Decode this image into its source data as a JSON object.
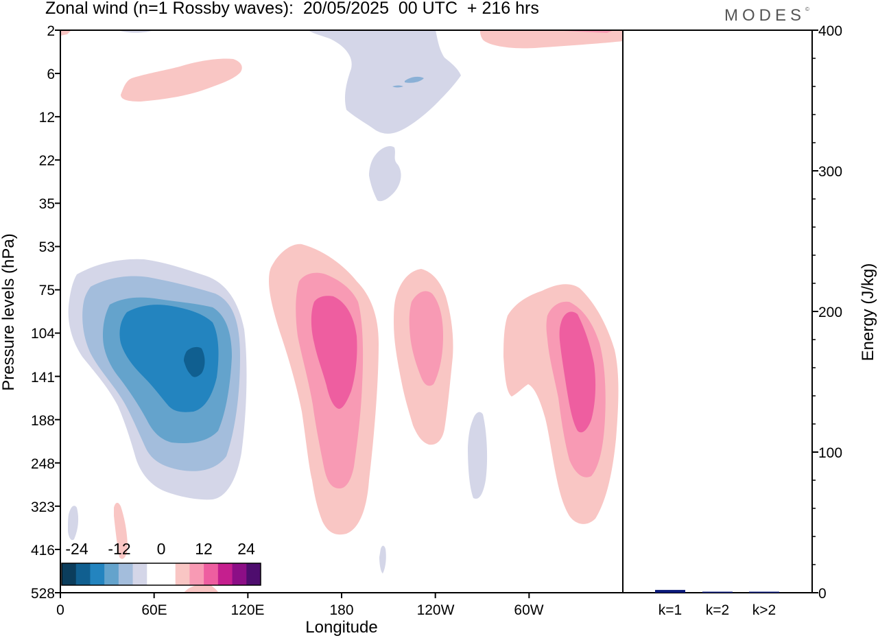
{
  "title": "Zonal wind (n=1 Rossby waves):  20/05/2025  00 UTC  + 216 hrs",
  "logo": "MODES",
  "chart_data": [
    {
      "type": "heatmap",
      "variable": "Zonal wind (n=1 Rossby waves)",
      "xlabel": "Longitude",
      "ylabel": "Pressure levels (hPa)",
      "x_ticks": [
        "0",
        "60E",
        "120E",
        "180",
        "120W",
        "60W"
      ],
      "y_ticks": [
        "2",
        "6",
        "12",
        "22",
        "35",
        "53",
        "75",
        "104",
        "141",
        "188",
        "248",
        "323",
        "416",
        "528"
      ],
      "y_scale": "log",
      "colorbar": {
        "labels": [
          "-24",
          "-12",
          "0",
          "12",
          "24"
        ],
        "colors": [
          "#0b3d5c",
          "#105f90",
          "#2384bf",
          "#64a3cc",
          "#a3bddc",
          "#d4d6e8",
          "#ffffff",
          "#ffffff",
          "#f9c6c4",
          "#f89ab4",
          "#ee5ea0",
          "#c51f8e",
          "#8c0e86",
          "#4e0d6e"
        ]
      },
      "features": [
        {
          "sign": "negative",
          "center_longitude": "75E",
          "center_level": "141",
          "peak": "-24"
        },
        {
          "sign": "positive",
          "center_longitude": "175E",
          "center_level": "120",
          "peak": "12"
        },
        {
          "sign": "positive",
          "center_longitude": "115W",
          "center_level": "104",
          "peak": "12"
        },
        {
          "sign": "positive",
          "center_longitude": "40W",
          "center_level": "141",
          "peak": "12"
        },
        {
          "sign": "negative",
          "center_longitude": "165W",
          "center_level": "6",
          "peak": "-6"
        }
      ]
    },
    {
      "type": "bar",
      "categories": [
        "k=1",
        "k=2",
        "k>2"
      ],
      "values": [
        2,
        0.5,
        0.5
      ],
      "ylabel": "Energy (J/kg)",
      "y_ticks": [
        "0",
        "100",
        "200",
        "300",
        "400"
      ],
      "ylim": [
        0,
        400
      ],
      "bar_color": "#0a1a7a"
    }
  ]
}
